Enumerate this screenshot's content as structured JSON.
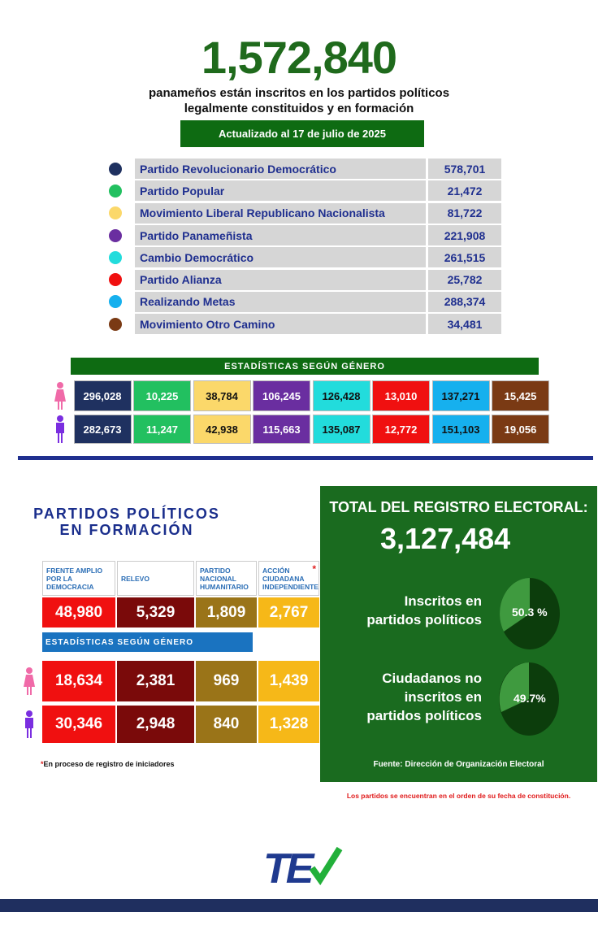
{
  "header": {
    "total": "1,572,840",
    "subtitle_line1": "panameños están inscritos en los partidos políticos",
    "subtitle_line2": "legalmente constituidos y en formación",
    "updated": "Actualizado al 17 de julio de 2025"
  },
  "parties": [
    {
      "name": "Partido Revolucionario Democrático",
      "value": "578,701",
      "color": "#1f3160",
      "women": "296,028",
      "men": "282,673",
      "text": "#fff"
    },
    {
      "name": "Partido Popular",
      "value": "21,472",
      "color": "#22c060",
      "women": "10,225",
      "men": "11,247",
      "text": "#fff"
    },
    {
      "name": "Movimiento Liberal Republicano Nacionalista",
      "value": "81,722",
      "color": "#fbd86a",
      "women": "38,784",
      "men": "42,938",
      "text": "#111"
    },
    {
      "name": "Partido Panameñista",
      "value": "221,908",
      "color": "#6a2ea0",
      "women": "106,245",
      "men": "115,663",
      "text": "#fff"
    },
    {
      "name": "Cambio Democrático",
      "value": "261,515",
      "color": "#22dcdc",
      "women": "126,428",
      "men": "135,087",
      "text": "#111"
    },
    {
      "name": "Partido Alianza",
      "value": "25,782",
      "color": "#f01010",
      "women": "13,010",
      "men": "12,772",
      "text": "#fff"
    },
    {
      "name": "Realizando Metas",
      "value": "288,374",
      "color": "#16b0ee",
      "women": "137,271",
      "men": "151,103",
      "text": "#111"
    },
    {
      "name": "Movimiento Otro Camino",
      "value": "34,481",
      "color": "#7a3a14",
      "women": "15,425",
      "men": "19,056",
      "text": "#fff"
    }
  ],
  "gender_title": "ESTADÍSTICAS SEGÚN GÉNERO",
  "formation": {
    "title_line1": "PARTIDOS POLÍTICOS",
    "title_line2": "EN FORMACIÓN",
    "parties": [
      {
        "name": "FRENTE AMPLIO POR LA DEMOCRACIA",
        "value": "48,980",
        "women": "18,634",
        "men": "30,346",
        "color": "#f01010"
      },
      {
        "name": "RELEVO",
        "value": "5,329",
        "women": "2,381",
        "men": "2,948",
        "color": "#7a0a0a"
      },
      {
        "name": "PARTIDO NACIONAL HUMANITARIO",
        "value": "1,809",
        "women": "969",
        "men": "840",
        "color": "#9a7418"
      },
      {
        "name": "ACCIÓN CIUDADANA INDEPENDIENTE",
        "value": "2,767",
        "women": "1,439",
        "men": "1,328",
        "color": "#f6b818",
        "asterisk": "*"
      }
    ],
    "gender_title": "ESTADÍSTICAS SEGÚN GÉNERO",
    "note_mark": "*",
    "note": "En proceso de registro de iniciadores"
  },
  "registry": {
    "title": "TOTAL DEL REGISTRO ELECTORAL:",
    "total": "3,127,484",
    "enrolled_label_1": "Inscritos en",
    "enrolled_label_2": "partidos políticos",
    "enrolled_pct": "50.3 %",
    "not_label_1": "Ciudadanos no",
    "not_label_2": "inscritos en",
    "not_label_3": "partidos políticos",
    "not_pct": "49.7%",
    "source": "Fuente: Dirección de Organización Electoral"
  },
  "order_note": "Los partidos se encuentran en el orden de su fecha de constitución.",
  "logo_text": "TE",
  "colors": {
    "green": "#1a6b1f",
    "navy": "#1f2f8f",
    "women_icon": "#f06aa8",
    "men_icon": "#7a2ee0"
  }
}
